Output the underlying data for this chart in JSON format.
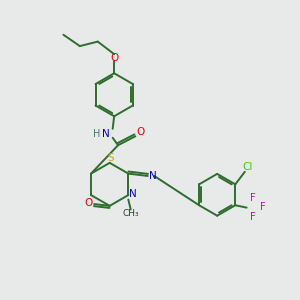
{
  "background_color": "#e8eaea",
  "bond_color": "#2d6e2d",
  "atom_colors": {
    "N": "#0000cc",
    "O": "#ee0000",
    "S": "#ccaa00",
    "Cl": "#44cc00",
    "F": "#cc00cc",
    "H": "#447766",
    "C": "#2d6e2d"
  },
  "lw": 1.4
}
